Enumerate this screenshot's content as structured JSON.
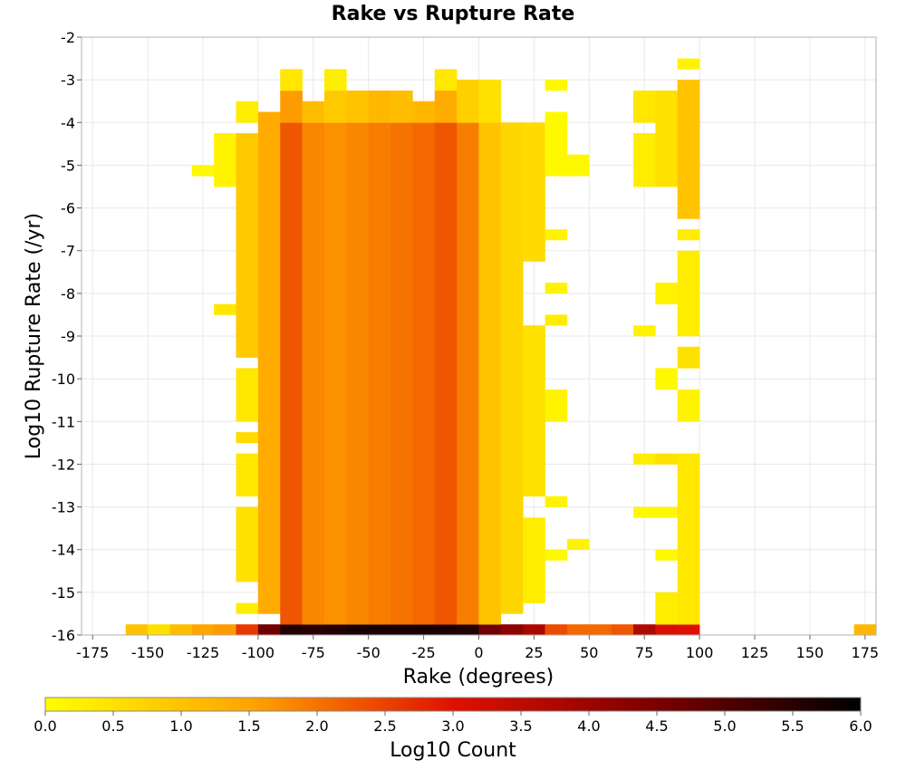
{
  "chart_data": {
    "type": "heatmap",
    "title": "Rake vs Rupture Rate",
    "xlabel": "Rake (degrees)",
    "ylabel": "Log10 Rupture Rate (/yr)",
    "colorbar_label": "Log10 Count",
    "xlim": [
      -180,
      180
    ],
    "ylim": [
      -16,
      -2
    ],
    "x_ticks": [
      "-175",
      "-150",
      "-125",
      "-100",
      "-75",
      "-50",
      "-25",
      "0",
      "25",
      "50",
      "75",
      "100",
      "125",
      "150",
      "175"
    ],
    "y_ticks": [
      "-2",
      "-3",
      "-4",
      "-5",
      "-6",
      "-7",
      "-8",
      "-9",
      "-10",
      "-11",
      "-12",
      "-13",
      "-14",
      "-15",
      "-16"
    ],
    "colorbar_ticks": [
      "0.0",
      "0.5",
      "1.0",
      "1.5",
      "2.0",
      "2.5",
      "3.0",
      "3.5",
      "4.0",
      "4.5",
      "5.0",
      "5.5",
      "6.0"
    ],
    "color_range": [
      0,
      6
    ],
    "colormap": [
      "#ffff00",
      "#ffa500",
      "#e01000",
      "#7a0000",
      "#000000"
    ],
    "grid": true,
    "x_bin_width": 10,
    "y_bin_height": 0.25,
    "column_bins": [
      {
        "x": -155,
        "segments": [
          {
            "from": -16,
            "to": -15.75,
            "value": 1.0
          }
        ]
      },
      {
        "x": -145,
        "segments": [
          {
            "from": -16,
            "to": -15.75,
            "value": 0.5
          }
        ]
      },
      {
        "x": -135,
        "segments": [
          {
            "from": -16,
            "to": -15.75,
            "value": 1.1
          }
        ]
      },
      {
        "x": -125,
        "segments": [
          {
            "from": -16,
            "to": -15.75,
            "value": 1.5
          },
          {
            "from": -5.25,
            "to": -5.0,
            "value": 0.1
          }
        ]
      },
      {
        "x": -115,
        "segments": [
          {
            "from": -16,
            "to": -15.75,
            "value": 1.6
          },
          {
            "from": -8.5,
            "to": -8.25,
            "value": 0.4
          },
          {
            "from": -5.5,
            "to": -4.25,
            "value": 0.2
          }
        ]
      },
      {
        "x": -105,
        "segments": [
          {
            "from": -16,
            "to": -15.75,
            "value": 2.6
          },
          {
            "from": -15.5,
            "to": -15.25,
            "value": 0.3
          },
          {
            "from": -14.75,
            "to": -13.0,
            "value": 0.5
          },
          {
            "from": -12.75,
            "to": -11.75,
            "value": 0.4
          },
          {
            "from": -11.5,
            "to": -11.25,
            "value": 0.6
          },
          {
            "from": -11.0,
            "to": -9.75,
            "value": 0.4
          },
          {
            "from": -9.5,
            "to": -4.25,
            "value": 0.9
          },
          {
            "from": -4.0,
            "to": -3.5,
            "value": 0.3
          }
        ]
      },
      {
        "x": -95,
        "segments": [
          {
            "from": -16,
            "to": -15.75,
            "value": 4.6
          },
          {
            "from": -15.5,
            "to": -3.75,
            "value": 1.4
          }
        ]
      },
      {
        "x": -85,
        "segments": [
          {
            "from": -16,
            "to": -15.75,
            "value": 5.6
          },
          {
            "from": -15.75,
            "to": -4.0,
            "value": 2.3
          },
          {
            "from": -4.0,
            "to": -3.25,
            "value": 1.6
          },
          {
            "from": -3.25,
            "to": -2.75,
            "value": 0.4
          }
        ]
      },
      {
        "x": -75,
        "segments": [
          {
            "from": -16,
            "to": -15.75,
            "value": 5.5
          },
          {
            "from": -15.75,
            "to": -4.0,
            "value": 1.8
          },
          {
            "from": -4.0,
            "to": -3.5,
            "value": 1.1
          }
        ]
      },
      {
        "x": -65,
        "segments": [
          {
            "from": -16,
            "to": -15.75,
            "value": 5.6
          },
          {
            "from": -15.75,
            "to": -4.0,
            "value": 1.7
          },
          {
            "from": -4.0,
            "to": -3.25,
            "value": 0.9
          },
          {
            "from": -3.25,
            "to": -2.75,
            "value": 0.3
          }
        ]
      },
      {
        "x": -55,
        "segments": [
          {
            "from": -16,
            "to": -15.75,
            "value": 5.7
          },
          {
            "from": -15.75,
            "to": -4.0,
            "value": 1.8
          },
          {
            "from": -4.0,
            "to": -3.25,
            "value": 1.0
          }
        ]
      },
      {
        "x": -45,
        "segments": [
          {
            "from": -16,
            "to": -15.75,
            "value": 5.7
          },
          {
            "from": -15.75,
            "to": -4.0,
            "value": 1.9
          },
          {
            "from": -4.0,
            "to": -3.25,
            "value": 1.2
          }
        ]
      },
      {
        "x": -35,
        "segments": [
          {
            "from": -16,
            "to": -15.75,
            "value": 5.7
          },
          {
            "from": -15.75,
            "to": -4.0,
            "value": 2.0
          },
          {
            "from": -4.0,
            "to": -3.25,
            "value": 1.1
          }
        ]
      },
      {
        "x": -25,
        "segments": [
          {
            "from": -16,
            "to": -15.75,
            "value": 5.7
          },
          {
            "from": -15.75,
            "to": -4.0,
            "value": 2.1
          },
          {
            "from": -4.0,
            "to": -3.5,
            "value": 1.2
          }
        ]
      },
      {
        "x": -15,
        "segments": [
          {
            "from": -16,
            "to": -15.75,
            "value": 5.7
          },
          {
            "from": -15.75,
            "to": -4.0,
            "value": 2.3
          },
          {
            "from": -4.0,
            "to": -3.25,
            "value": 1.4
          },
          {
            "from": -3.25,
            "to": -2.75,
            "value": 0.4
          }
        ]
      },
      {
        "x": -5,
        "segments": [
          {
            "from": -16,
            "to": -15.75,
            "value": 5.6
          },
          {
            "from": -15.75,
            "to": -4.0,
            "value": 1.9
          },
          {
            "from": -4.0,
            "to": -3.0,
            "value": 0.8
          }
        ]
      },
      {
        "x": 5,
        "segments": [
          {
            "from": -16,
            "to": -15.75,
            "value": 4.6
          },
          {
            "from": -15.75,
            "to": -4.0,
            "value": 1.0
          },
          {
            "from": -4.0,
            "to": -3.0,
            "value": 0.5
          }
        ]
      },
      {
        "x": 15,
        "segments": [
          {
            "from": -16,
            "to": -15.75,
            "value": 4.2
          },
          {
            "from": -15.5,
            "to": -4.0,
            "value": 0.7
          }
        ]
      },
      {
        "x": 25,
        "segments": [
          {
            "from": -16,
            "to": -15.75,
            "value": 3.8
          },
          {
            "from": -15.25,
            "to": -13.25,
            "value": 0.3
          },
          {
            "from": -12.75,
            "to": -8.75,
            "value": 0.5
          },
          {
            "from": -7.25,
            "to": -4.0,
            "value": 0.6
          }
        ]
      },
      {
        "x": 35,
        "segments": [
          {
            "from": -16,
            "to": -15.75,
            "value": 2.4
          },
          {
            "from": -14.25,
            "to": -14.0,
            "value": 0.1
          },
          {
            "from": -13.0,
            "to": -12.75,
            "value": 0.2
          },
          {
            "from": -11.0,
            "to": -10.25,
            "value": 0.2
          },
          {
            "from": -8.75,
            "to": -8.5,
            "value": 0.3
          },
          {
            "from": -8.0,
            "to": -7.75,
            "value": 0.2
          },
          {
            "from": -6.75,
            "to": -6.5,
            "value": 0.2
          },
          {
            "from": -5.25,
            "to": -3.75,
            "value": 0.1
          },
          {
            "from": -3.25,
            "to": -3.0,
            "value": 0.1
          }
        ]
      },
      {
        "x": 45,
        "segments": [
          {
            "from": -16,
            "to": -15.75,
            "value": 2.1
          },
          {
            "from": -14.0,
            "to": -13.75,
            "value": 0.2
          },
          {
            "from": -5.25,
            "to": -4.75,
            "value": 0.1
          }
        ]
      },
      {
        "x": 55,
        "segments": [
          {
            "from": -16,
            "to": -15.75,
            "value": 2.1
          }
        ]
      },
      {
        "x": 65,
        "segments": [
          {
            "from": -16,
            "to": -15.75,
            "value": 2.3
          }
        ]
      },
      {
        "x": 75,
        "segments": [
          {
            "from": -16,
            "to": -15.75,
            "value": 3.7
          },
          {
            "from": -13.25,
            "to": -13.0,
            "value": 0.1
          },
          {
            "from": -12.0,
            "to": -11.75,
            "value": 0.3
          },
          {
            "from": -9.0,
            "to": -8.75,
            "value": 0.2
          },
          {
            "from": -5.5,
            "to": -4.25,
            "value": 0.3
          },
          {
            "from": -4.0,
            "to": -3.25,
            "value": 0.4
          }
        ]
      },
      {
        "x": 85,
        "segments": [
          {
            "from": -16,
            "to": -15.75,
            "value": 3.1
          },
          {
            "from": -15.75,
            "to": -15.0,
            "value": 0.3
          },
          {
            "from": -14.25,
            "to": -14.0,
            "value": 0.1
          },
          {
            "from": -13.25,
            "to": -13.0,
            "value": 0.1
          },
          {
            "from": -12.0,
            "to": -11.75,
            "value": 0.5
          },
          {
            "from": -10.25,
            "to": -9.75,
            "value": 0.1
          },
          {
            "from": -8.25,
            "to": -7.75,
            "value": 0.2
          },
          {
            "from": -5.5,
            "to": -3.25,
            "value": 0.5
          }
        ]
      },
      {
        "x": 95,
        "segments": [
          {
            "from": -16,
            "to": -15.75,
            "value": 3.0
          },
          {
            "from": -15.75,
            "to": -11.75,
            "value": 0.4
          },
          {
            "from": -11.0,
            "to": -10.25,
            "value": 0.2
          },
          {
            "from": -9.75,
            "to": -9.25,
            "value": 0.5
          },
          {
            "from": -9.0,
            "to": -7.0,
            "value": 0.3
          },
          {
            "from": -6.75,
            "to": -6.5,
            "value": 0.3
          },
          {
            "from": -6.25,
            "to": -3.0,
            "value": 1.0
          },
          {
            "from": -2.75,
            "to": -2.5,
            "value": 0.2
          }
        ]
      },
      {
        "x": 175,
        "segments": [
          {
            "from": -16,
            "to": -15.75,
            "value": 1.2
          }
        ]
      }
    ]
  }
}
